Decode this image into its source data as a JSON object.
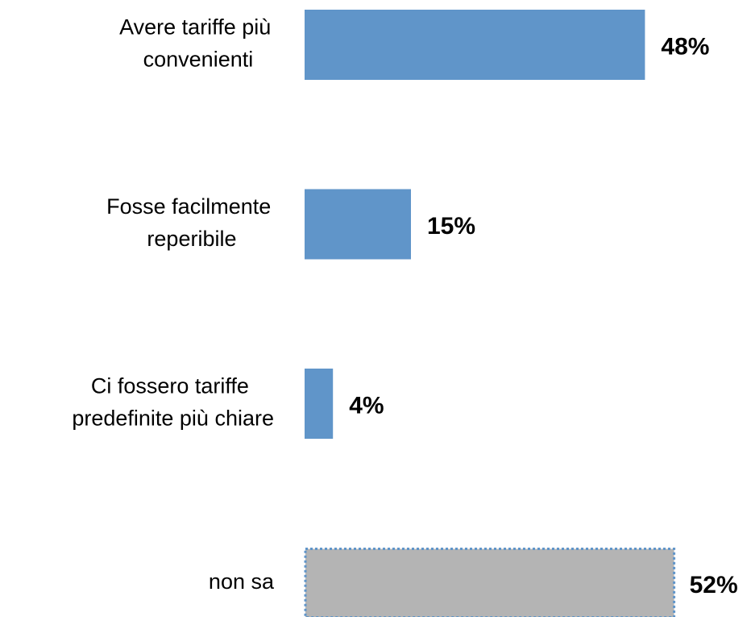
{
  "chart_data": {
    "type": "bar",
    "orientation": "horizontal",
    "categories": [
      "Avere tariffe più convenienti",
      "Fosse facilmente reperibile",
      "Ci fossero tariffe predefinite più chiare",
      "non sa"
    ],
    "values": [
      48,
      15,
      4,
      52
    ],
    "value_labels": [
      "48%",
      "15%",
      "4%",
      "52%"
    ],
    "colors": [
      "#6095c9",
      "#6095c9",
      "#6095c9",
      "#b4b4b4"
    ]
  }
}
